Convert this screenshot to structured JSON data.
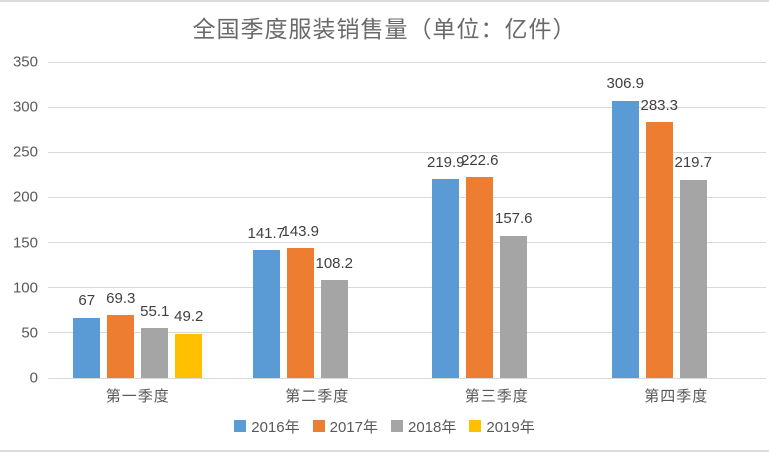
{
  "page": {
    "background": "#ffffff",
    "frame_line_color": "#dcdcdc"
  },
  "chart_data": {
    "type": "bar",
    "title": "全国季度服装销售量（单位：亿件）",
    "categories": [
      "第一季度",
      "第二季度",
      "第三季度",
      "第四季度"
    ],
    "series": [
      {
        "name": "2016年",
        "color": "#5B9BD5",
        "values": [
          67,
          141.7,
          219.9,
          306.9
        ]
      },
      {
        "name": "2017年",
        "color": "#ED7D31",
        "values": [
          69.3,
          143.9,
          222.6,
          283.3
        ]
      },
      {
        "name": "2018年",
        "color": "#A5A5A5",
        "values": [
          55.1,
          108.2,
          157.6,
          219.7
        ]
      },
      {
        "name": "2019年",
        "color": "#FFC000",
        "values": [
          49.2,
          null,
          null,
          null
        ]
      }
    ],
    "ylim": [
      0,
      350
    ],
    "yticks": [
      0,
      50,
      100,
      150,
      200,
      250,
      300,
      350
    ],
    "grid": true,
    "value_labels": true,
    "legend_position": "bottom",
    "gridline_color": "#d9d9d9",
    "axis_text_color": "#595959",
    "value_label_color": "#404040",
    "title_color": "#6a6a6a"
  }
}
